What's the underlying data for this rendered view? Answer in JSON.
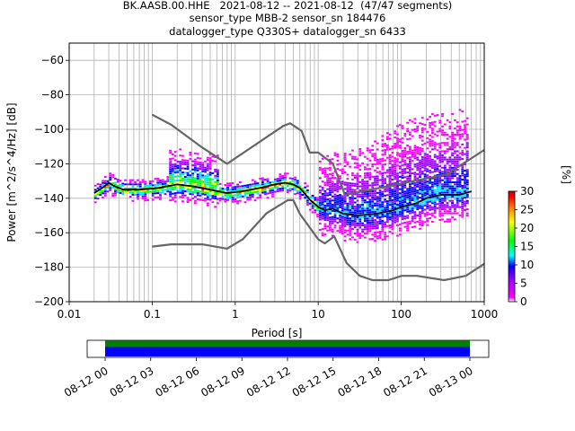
{
  "header": {
    "lines": [
      "BK.AASB.00.HHE   2021-08-12 -- 2021-08-12  (47/47 segments)",
      "sensor_type MBB-2 sensor_sn 184476",
      "datalogger_type Q330S+ datalogger_sn 6433"
    ]
  },
  "chart_data": {
    "type": "heatmap",
    "xlabel": "Period [s]",
    "ylabel": "Power [m^2/s^4/Hz] [dB]",
    "x_scale": "log",
    "xlim": [
      0.01,
      1000
    ],
    "ylim": [
      -200,
      -50
    ],
    "x_ticks": [
      0.01,
      0.1,
      1,
      10,
      100,
      1000
    ],
    "x_tick_labels": [
      "0.01",
      "0.1",
      "1",
      "10",
      "100",
      "1000"
    ],
    "y_ticks": [
      -200,
      -180,
      -160,
      -140,
      -120,
      -100,
      -80,
      -60
    ],
    "y_tick_labels": [
      "−200",
      "−180",
      "−160",
      "−140",
      "−120",
      "−100",
      "−80",
      "−60"
    ],
    "grid": true,
    "colorbar": {
      "label": "[%]",
      "range": [
        0,
        30
      ],
      "ticks": [
        0,
        5,
        10,
        15,
        20,
        25,
        30
      ],
      "colors": [
        "#ffffff",
        "#ff00ff",
        "#a000ff",
        "#0000ff",
        "#00ffff",
        "#00ff00",
        "#ffff00",
        "#ff8000",
        "#ff0000",
        "#c00000"
      ]
    },
    "series": [
      {
        "kind": "noise_model",
        "color": "#666666",
        "x": [
          0.1,
          0.17,
          0.4,
          0.8,
          3.8,
          4.6,
          6.3,
          7.9,
          10,
          15,
          21,
          350,
          1000
        ],
        "y": [
          -91.5,
          -97.4,
          -110.5,
          -120,
          -98.0,
          -96.5,
          -101.0,
          -113.5,
          -113.5,
          -120,
          -138,
          -126.2,
          -112
        ]
      },
      {
        "kind": "noise_model",
        "color": "#666666",
        "x": [
          0.1,
          0.17,
          0.4,
          0.8,
          1.24,
          2.4,
          4.3,
          5.0,
          6.0,
          10,
          12,
          15.6,
          21.9,
          31.6,
          45,
          70,
          101,
          154,
          328,
          600,
          1000
        ],
        "y": [
          -168,
          -166.7,
          -166.7,
          -169.2,
          -163.7,
          -148.6,
          -141.1,
          -141.1,
          -149.0,
          -163.8,
          -166.2,
          -162.1,
          -177.5,
          -185,
          -187.5,
          -187.5,
          -185,
          -185,
          -187.5,
          -185,
          -178
        ]
      },
      {
        "kind": "mode",
        "color": "#000000",
        "x": [
          0.02,
          0.025,
          0.03,
          0.035,
          0.045,
          0.07,
          0.12,
          0.2,
          0.3,
          0.5,
          0.8,
          1.2,
          2,
          3,
          4,
          5,
          6,
          8,
          10,
          12,
          15,
          20,
          30,
          50,
          80,
          100,
          150,
          200,
          300,
          500,
          700
        ],
        "y": [
          -137,
          -134,
          -131,
          -133,
          -135,
          -135,
          -134,
          -132,
          -133,
          -135,
          -137,
          -136,
          -134,
          -132,
          -131,
          -132,
          -134,
          -141,
          -145,
          -147,
          -146,
          -149,
          -150,
          -149,
          -147,
          -145,
          -143,
          -140,
          -138,
          -138,
          -136
        ]
      }
    ]
  },
  "timeline": {
    "tick_labels": [
      "08-12 00",
      "08-12 03",
      "08-12 06",
      "08-12 09",
      "08-12 12",
      "08-12 15",
      "08-12 18",
      "08-12 21",
      "08-13 00"
    ],
    "coverage_fraction_start": 0.0,
    "coverage_fraction_end": 1.0,
    "bar_colors": [
      "#008000",
      "#0000ff"
    ]
  }
}
